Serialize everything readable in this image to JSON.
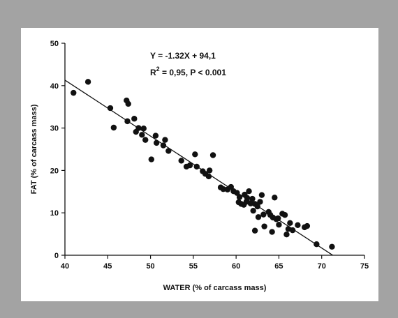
{
  "chart_data": {
    "type": "scatter",
    "xlabel": "WATER (% of carcass mass)",
    "ylabel": "FAT (% of carcass mass)",
    "xlim": [
      40,
      75
    ],
    "ylim": [
      0,
      50
    ],
    "xticks": [
      40,
      45,
      50,
      55,
      60,
      65,
      70,
      75
    ],
    "yticks": [
      0,
      10,
      20,
      30,
      40,
      50
    ],
    "annotation_line1": "Y = -1.32X + 94,1",
    "annotation_r2": "R",
    "annotation_sup": "2",
    "annotation_line2_rest": " = 0,95,  P < 0.001",
    "regression": {
      "slope": -1.32,
      "intercept": 94.1,
      "x_range": [
        40,
        71.3
      ]
    },
    "points": [
      [
        41.0,
        38.3
      ],
      [
        42.7,
        40.9
      ],
      [
        45.3,
        34.7
      ],
      [
        45.7,
        30.1
      ],
      [
        47.2,
        36.5
      ],
      [
        47.4,
        35.7
      ],
      [
        47.3,
        31.6
      ],
      [
        48.1,
        32.2
      ],
      [
        48.3,
        29.1
      ],
      [
        48.6,
        30.0
      ],
      [
        49.0,
        28.4
      ],
      [
        49.2,
        29.9
      ],
      [
        49.4,
        27.2
      ],
      [
        50.1,
        22.6
      ],
      [
        50.6,
        28.2
      ],
      [
        50.7,
        26.5
      ],
      [
        51.5,
        25.9
      ],
      [
        51.7,
        27.2
      ],
      [
        52.1,
        24.6
      ],
      [
        53.6,
        22.3
      ],
      [
        54.2,
        20.9
      ],
      [
        54.6,
        21.2
      ],
      [
        55.2,
        23.8
      ],
      [
        55.4,
        20.9
      ],
      [
        56.1,
        19.8
      ],
      [
        56.4,
        19.2
      ],
      [
        56.8,
        18.6
      ],
      [
        56.9,
        20.0
      ],
      [
        57.3,
        23.6
      ],
      [
        58.2,
        16.0
      ],
      [
        58.5,
        15.6
      ],
      [
        59.0,
        15.5
      ],
      [
        59.4,
        16.1
      ],
      [
        59.7,
        15.1
      ],
      [
        60.1,
        14.7
      ],
      [
        60.3,
        12.5
      ],
      [
        60.4,
        13.7
      ],
      [
        60.6,
        12.1
      ],
      [
        60.9,
        11.9
      ],
      [
        61.0,
        14.3
      ],
      [
        61.2,
        12.6
      ],
      [
        61.3,
        13.5
      ],
      [
        61.5,
        15.1
      ],
      [
        61.7,
        12.2
      ],
      [
        61.9,
        13.3
      ],
      [
        62.0,
        10.5
      ],
      [
        62.2,
        12.1
      ],
      [
        62.2,
        5.8
      ],
      [
        62.5,
        11.5
      ],
      [
        62.6,
        9.0
      ],
      [
        62.8,
        12.6
      ],
      [
        63.0,
        14.2
      ],
      [
        63.2,
        9.6
      ],
      [
        63.3,
        6.8
      ],
      [
        63.8,
        10.2
      ],
      [
        64.0,
        9.5
      ],
      [
        64.2,
        5.5
      ],
      [
        64.3,
        8.9
      ],
      [
        64.5,
        13.6
      ],
      [
        64.7,
        8.5
      ],
      [
        64.9,
        8.7
      ],
      [
        65.0,
        7.2
      ],
      [
        65.4,
        9.8
      ],
      [
        65.7,
        9.5
      ],
      [
        65.9,
        4.9
      ],
      [
        66.1,
        6.2
      ],
      [
        66.3,
        7.6
      ],
      [
        66.6,
        5.9
      ],
      [
        67.2,
        7.1
      ],
      [
        68.0,
        6.6
      ],
      [
        68.3,
        6.9
      ],
      [
        69.4,
        2.6
      ],
      [
        71.2,
        2.0
      ]
    ]
  }
}
